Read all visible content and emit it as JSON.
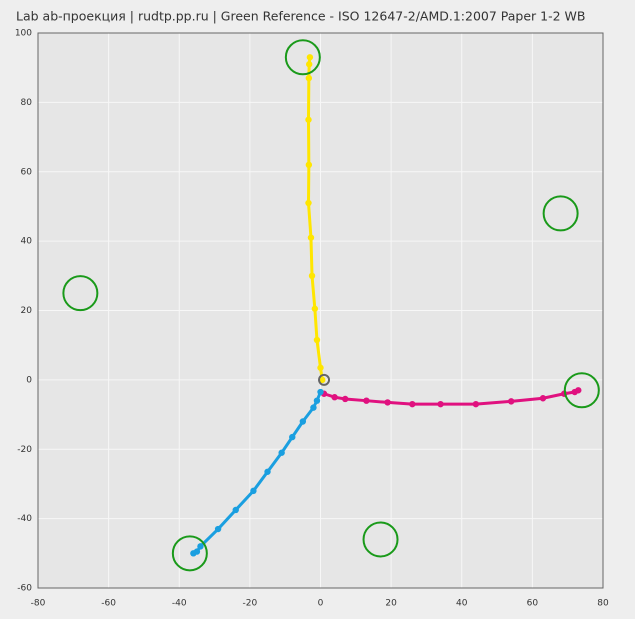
{
  "chart_data": {
    "type": "scatter",
    "title": "Lab ab-проекция | rudtp.pp.ru | Green Reference - ISO 12647-2/AMD.1:2007 Paper 1-2 WB",
    "xlim": [
      -80,
      80
    ],
    "ylim": [
      -60,
      100
    ],
    "xticks": [
      -80,
      -60,
      -40,
      -20,
      0,
      20,
      40,
      60,
      80
    ],
    "yticks": [
      -60,
      -40,
      -20,
      0,
      20,
      40,
      60,
      80,
      100
    ],
    "grid": true,
    "series": [
      {
        "color": "#ffe600",
        "style": "line",
        "x": [
          -3,
          -3.2,
          -3.3,
          -3.4,
          -3.3,
          -3.4,
          -2.7,
          -2.4,
          -1.6,
          -1,
          0,
          0.5
        ],
        "y": [
          93,
          91,
          87,
          75,
          62,
          51,
          41,
          30,
          20.5,
          11.5,
          3.5,
          0
        ]
      },
      {
        "color": "#e0117f",
        "style": "line",
        "x": [
          1,
          4,
          7,
          13,
          19,
          26,
          34,
          44,
          54,
          63,
          69,
          72,
          73
        ],
        "y": [
          -4,
          -5,
          -5.5,
          -6,
          -6.5,
          -7,
          -7,
          -7,
          -6.2,
          -5.3,
          -4,
          -3.5,
          -3
        ]
      },
      {
        "color": "#1a9fe0",
        "style": "line",
        "x": [
          0,
          -1,
          -2,
          -5,
          -8,
          -11,
          -15,
          -19,
          -24,
          -29,
          -34,
          -35,
          -36
        ],
        "y": [
          -3.5,
          -6,
          -8,
          -12,
          -16.5,
          -21,
          -26.5,
          -32,
          -37.5,
          -43,
          -48,
          -49.5,
          -50
        ]
      },
      {
        "color": "#1a9a1a",
        "style": "ring",
        "x": [
          -5,
          68,
          -68,
          74,
          -37,
          17
        ],
        "y": [
          93,
          48,
          25,
          -3,
          -50,
          -46
        ]
      },
      {
        "color": "#666666",
        "style": "ring-small",
        "x": [
          1
        ],
        "y": [
          0
        ]
      }
    ]
  }
}
